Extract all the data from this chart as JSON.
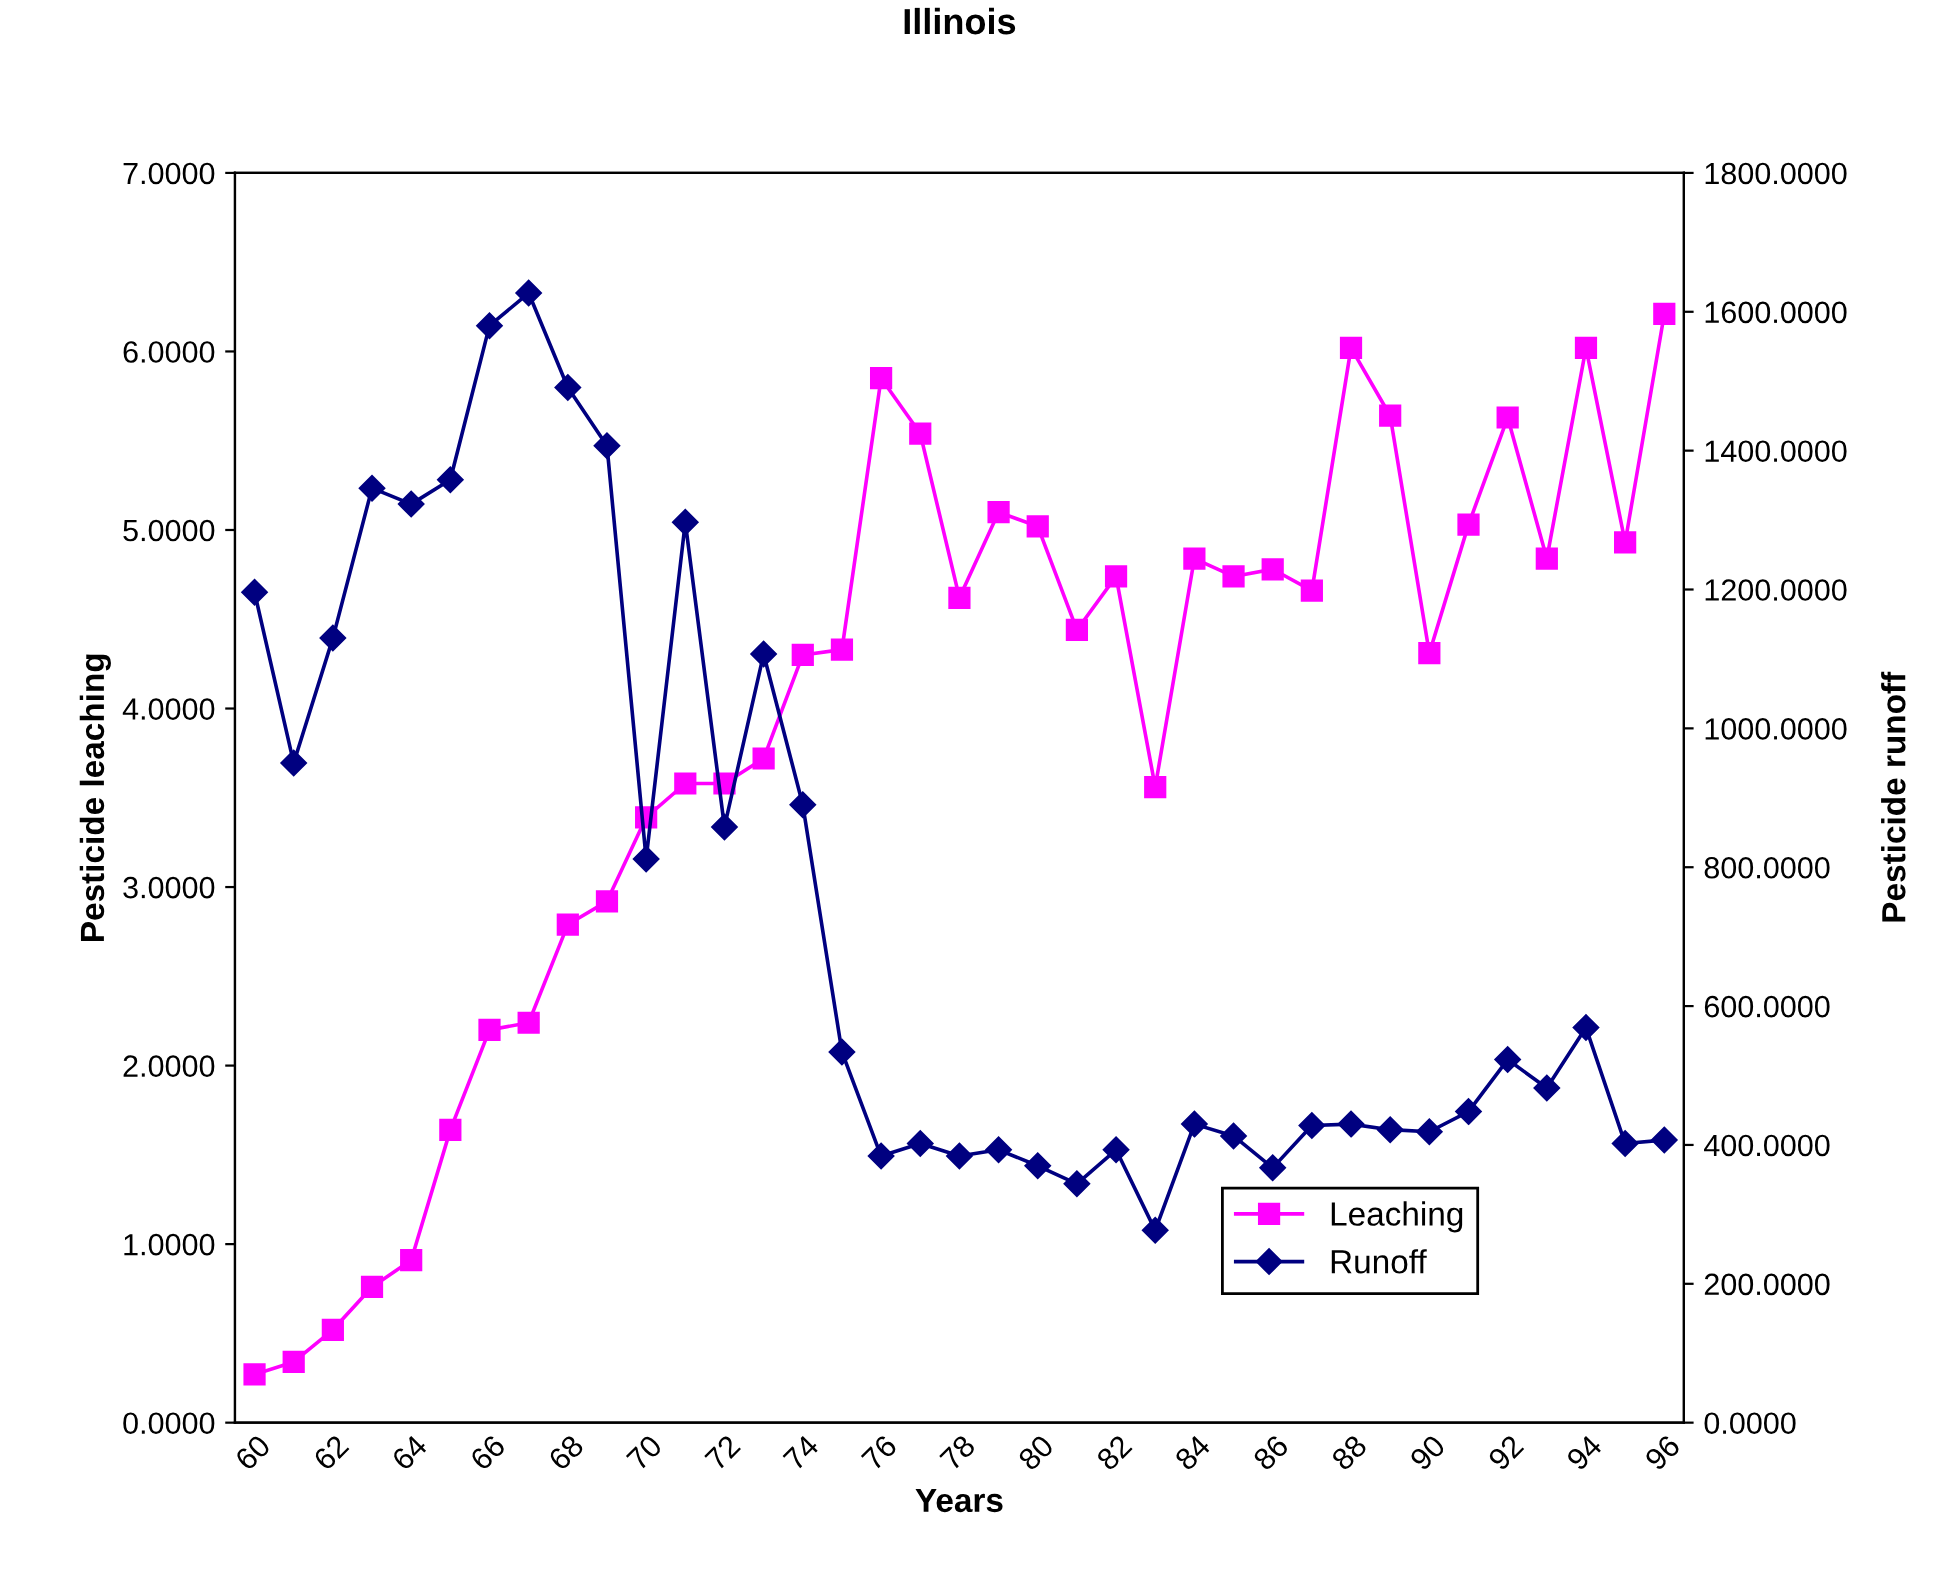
{
  "chart_data": {
    "type": "line",
    "title": "Illinois",
    "xlabel": "Years",
    "ylabel": "Pesticide leaching",
    "y2label": "Pesticide runoff",
    "categories": [
      "60",
      null,
      "62",
      null,
      "64",
      null,
      "66",
      null,
      "68",
      null,
      "70",
      null,
      "72",
      null,
      "74",
      null,
      "76",
      null,
      "78",
      null,
      "80",
      null,
      "82",
      null,
      "84",
      null,
      "86",
      null,
      "88",
      null,
      "90",
      null,
      "92",
      null,
      "94",
      null,
      "96"
    ],
    "series": [
      {
        "name": "Leaching",
        "color": "#ff00ff",
        "marker": "square",
        "values": [
          0.27,
          0.34,
          0.52,
          0.76,
          0.91,
          1.64,
          2.2,
          2.24,
          2.79,
          2.92,
          3.39,
          3.58,
          3.58,
          3.72,
          4.3,
          4.33,
          5.85,
          5.54,
          4.62,
          5.1,
          5.02,
          4.44,
          4.74,
          3.56,
          4.84,
          4.74,
          4.78,
          4.66,
          6.02,
          5.64,
          4.31,
          5.03,
          5.63,
          4.84,
          6.02,
          4.93,
          6.21
        ]
      },
      {
        "name": "Runoff",
        "color": "#000080",
        "marker": "diamond",
        "axis": "y2",
        "values": [
          1196,
          950,
          1130,
          1346,
          1323,
          1358,
          1580,
          1627,
          1491,
          1407,
          812,
          1297,
          858,
          1107,
          890,
          534,
          384,
          402,
          384,
          393,
          370,
          344,
          393,
          277,
          430,
          413,
          367,
          428,
          430,
          422,
          419,
          448,
          523,
          482,
          569,
          402,
          407
        ]
      }
    ],
    "ylim": [
      0,
      7
    ],
    "yticks": [
      {
        "value": 0,
        "label": "0.0000"
      },
      {
        "value": 1,
        "label": "1.0000"
      },
      {
        "value": 2,
        "label": "2.0000"
      },
      {
        "value": 3,
        "label": "3.0000"
      },
      {
        "value": 4,
        "label": "4.0000"
      },
      {
        "value": 5,
        "label": "5.0000"
      },
      {
        "value": 6,
        "label": "6.0000"
      },
      {
        "value": 7,
        "label": "7.0000"
      }
    ],
    "y2lim": [
      0,
      1800
    ],
    "y2ticks": [
      {
        "value": 0,
        "label": "0.0000"
      },
      {
        "value": 200,
        "label": "200.0000"
      },
      {
        "value": 400,
        "label": "400.0000"
      },
      {
        "value": 600,
        "label": "600.0000"
      },
      {
        "value": 800,
        "label": "800.0000"
      },
      {
        "value": 1000,
        "label": "1000.0000"
      },
      {
        "value": 1200,
        "label": "1200.0000"
      },
      {
        "value": 1400,
        "label": "1400.0000"
      },
      {
        "value": 1600,
        "label": "1600.0000"
      },
      {
        "value": 1800,
        "label": "1800.0000"
      }
    ],
    "legend": "bottom right",
    "grid": false,
    "line_style": "solid"
  }
}
